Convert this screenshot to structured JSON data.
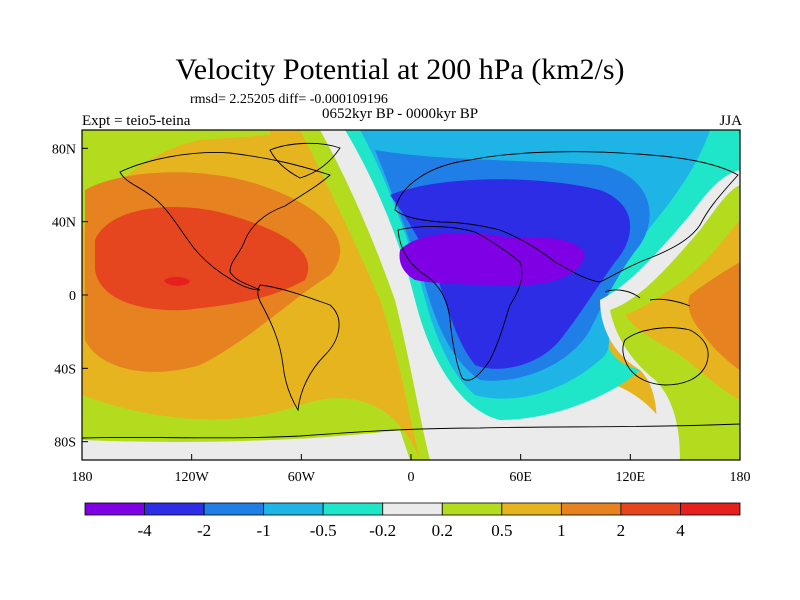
{
  "chart_data": {
    "type": "heatmap",
    "title": "Velocity Potential at 200 hPa (km2/s)",
    "stats_label": "rmsd= 2.25205 diff= -0.000109196",
    "experiment_label": "Expt = teio5-teina",
    "period_label": "0652kyr BP - 0000kyr BP",
    "season_label": "JJA",
    "x_axis": {
      "range": [
        -180,
        180
      ],
      "ticks": [
        {
          "value": -180,
          "label": "180"
        },
        {
          "value": -120,
          "label": "120W"
        },
        {
          "value": -60,
          "label": "60W"
        },
        {
          "value": 0,
          "label": "0"
        },
        {
          "value": 60,
          "label": "60E"
        },
        {
          "value": 120,
          "label": "120E"
        },
        {
          "value": 180,
          "label": "180"
        }
      ]
    },
    "y_axis": {
      "range": [
        -90,
        90
      ],
      "ticks": [
        {
          "value": 80,
          "label": "80N"
        },
        {
          "value": 40,
          "label": "40N"
        },
        {
          "value": 0,
          "label": "0"
        },
        {
          "value": -40,
          "label": "40S"
        },
        {
          "value": -80,
          "label": "80S"
        }
      ]
    },
    "colorbar": {
      "colors": [
        "#8000e6",
        "#2d2de6",
        "#1f7fe6",
        "#1fb4e6",
        "#1fe6c8",
        "#ebebeb",
        "#b4dc1f",
        "#e6b41f",
        "#e6821f",
        "#e6461f",
        "#e61f1f"
      ],
      "levels": [
        "-4",
        "-2",
        "-1",
        "-0.5",
        "-0.2",
        "0.2",
        "0.5",
        "1",
        "2",
        "4"
      ]
    },
    "regions": [
      {
        "name": "pacific-atlantic-positive",
        "level": 1,
        "centre_lon": -130,
        "centre_lat": 5
      },
      {
        "name": "pacific-core-maximum",
        "level": 4,
        "centre_lon": -140,
        "centre_lat": 8
      },
      {
        "name": "africa-asia-negative",
        "level": -2,
        "centre_lon": 40,
        "centre_lat": 10
      },
      {
        "name": "africa-minimum",
        "level": -4,
        "centre_lon": 45,
        "centre_lat": 15
      },
      {
        "name": "west-pacific-positive",
        "level": 2,
        "centre_lon": 160,
        "centre_lat": -10
      }
    ]
  }
}
